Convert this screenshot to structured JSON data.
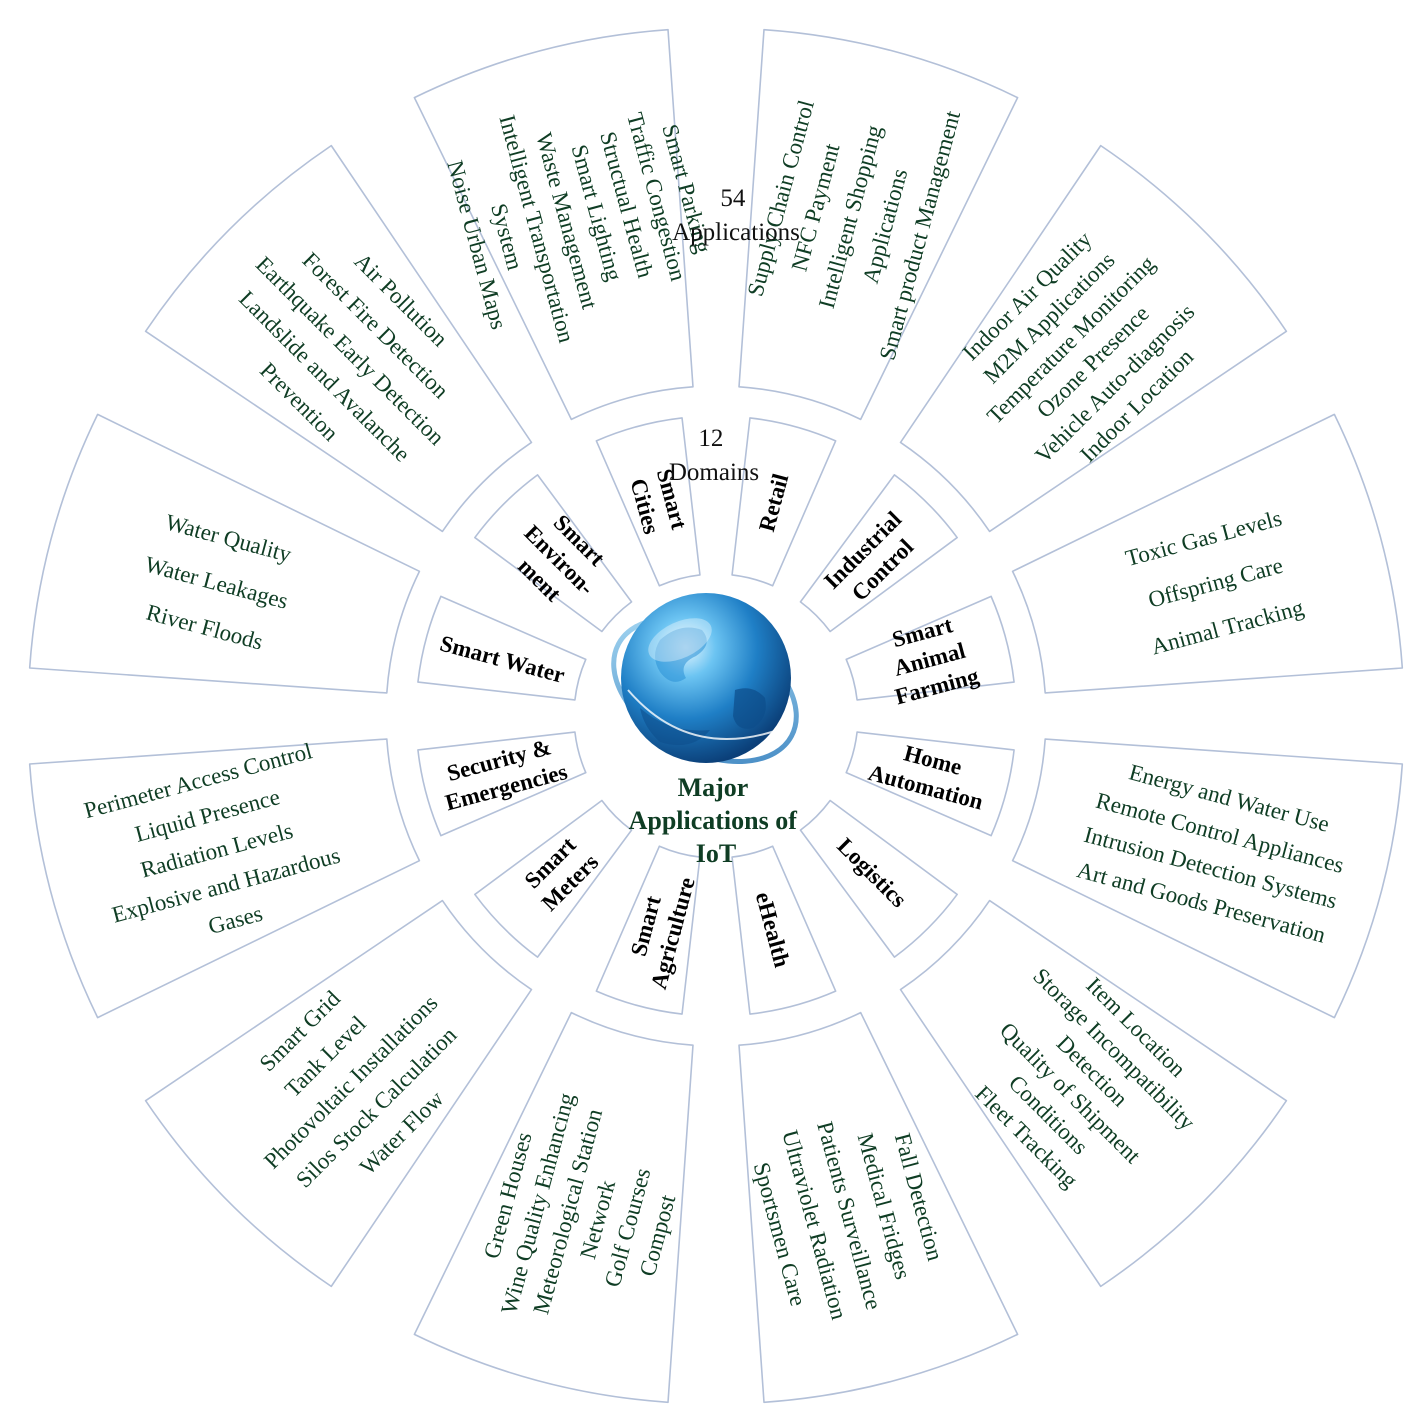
{
  "center": {
    "title_lines": [
      "Major",
      "Applications of",
      "IoT"
    ],
    "icon": "globe-icon"
  },
  "counts": {
    "domains": {
      "number": "12",
      "label": "Domains"
    },
    "applications": {
      "number": "54",
      "label": "Applications"
    }
  },
  "colors": {
    "box_stroke": "#b3c0d8",
    "app_text": "#0f3d24",
    "domain_text": "#000000",
    "globe": "#1f7fc6"
  },
  "segments": [
    {
      "domain": [
        "Smart",
        "Cities"
      ],
      "apps": [
        "Smart Parking",
        "Traffic Congestion",
        "Structual Health",
        "Smart Lighting",
        "Waste Management",
        "Intelligent Transportation",
        "System",
        "Noise Urban Maps"
      ]
    },
    {
      "domain": [
        "Retail"
      ],
      "apps": [
        "Supply Chain Control",
        "NFC Payment",
        "Intelligent Shopping",
        "Applications",
        "Smart product Management"
      ]
    },
    {
      "domain": [
        "Industrial",
        "Control"
      ],
      "apps": [
        "Indoor Air Quality",
        "M2M Applications",
        "Temperature Monitoring",
        "Ozone Presence",
        "Vehicle Auto-diagnosis",
        "Indoor Location"
      ]
    },
    {
      "domain": [
        "Smart",
        "Animal",
        "Farming"
      ],
      "apps": [
        "Toxic Gas Levels",
        "Offspring Care",
        "Animal Tracking"
      ]
    },
    {
      "domain": [
        "Home",
        "Automation"
      ],
      "apps": [
        "Energy and Water Use",
        "Remote Control Appliances",
        "Intrusion Detection Systems",
        "Art and Goods Preservation"
      ]
    },
    {
      "domain": [
        "Logistics"
      ],
      "apps": [
        "Item Location",
        "Storage Incompatibility",
        "Detection",
        "Quality of Shipment",
        "Conditions",
        "Fleet Tracking"
      ]
    },
    {
      "domain": [
        "eHealth"
      ],
      "apps": [
        "Fall Detection",
        "Medical Fridges",
        "Patients Surveillance",
        "Ultraviolet Radiation",
        "Sportsmen Care"
      ]
    },
    {
      "domain": [
        "Smart",
        "Agriculture"
      ],
      "apps": [
        "Green Houses",
        "Wine Quality Enhancing",
        "Meteorological Station",
        "Network",
        "Golf Courses",
        "Compost"
      ]
    },
    {
      "domain": [
        "Smart",
        "Meters"
      ],
      "apps": [
        "Smart Grid",
        "Tank Level",
        "Photovoltaic Installations",
        "Silos Stock Calculation",
        "Water Flow"
      ]
    },
    {
      "domain": [
        "Security &",
        "Emergencies"
      ],
      "apps": [
        "Perimeter Access Control",
        "Liquid Presence",
        "Radiation Levels",
        "Explosive and Hazardous",
        "Gases"
      ]
    },
    {
      "domain": [
        "Smart Water"
      ],
      "apps": [
        "Water Quality",
        "Water Leakages",
        "River Floods"
      ]
    },
    {
      "domain": [
        "Smart",
        "Environ-",
        "ment"
      ],
      "apps": [
        "Air Pollution",
        "Forest Fire Detection",
        "Earthquake Early Detection",
        "Landslide and Avalanche",
        "Prevention"
      ]
    }
  ]
}
